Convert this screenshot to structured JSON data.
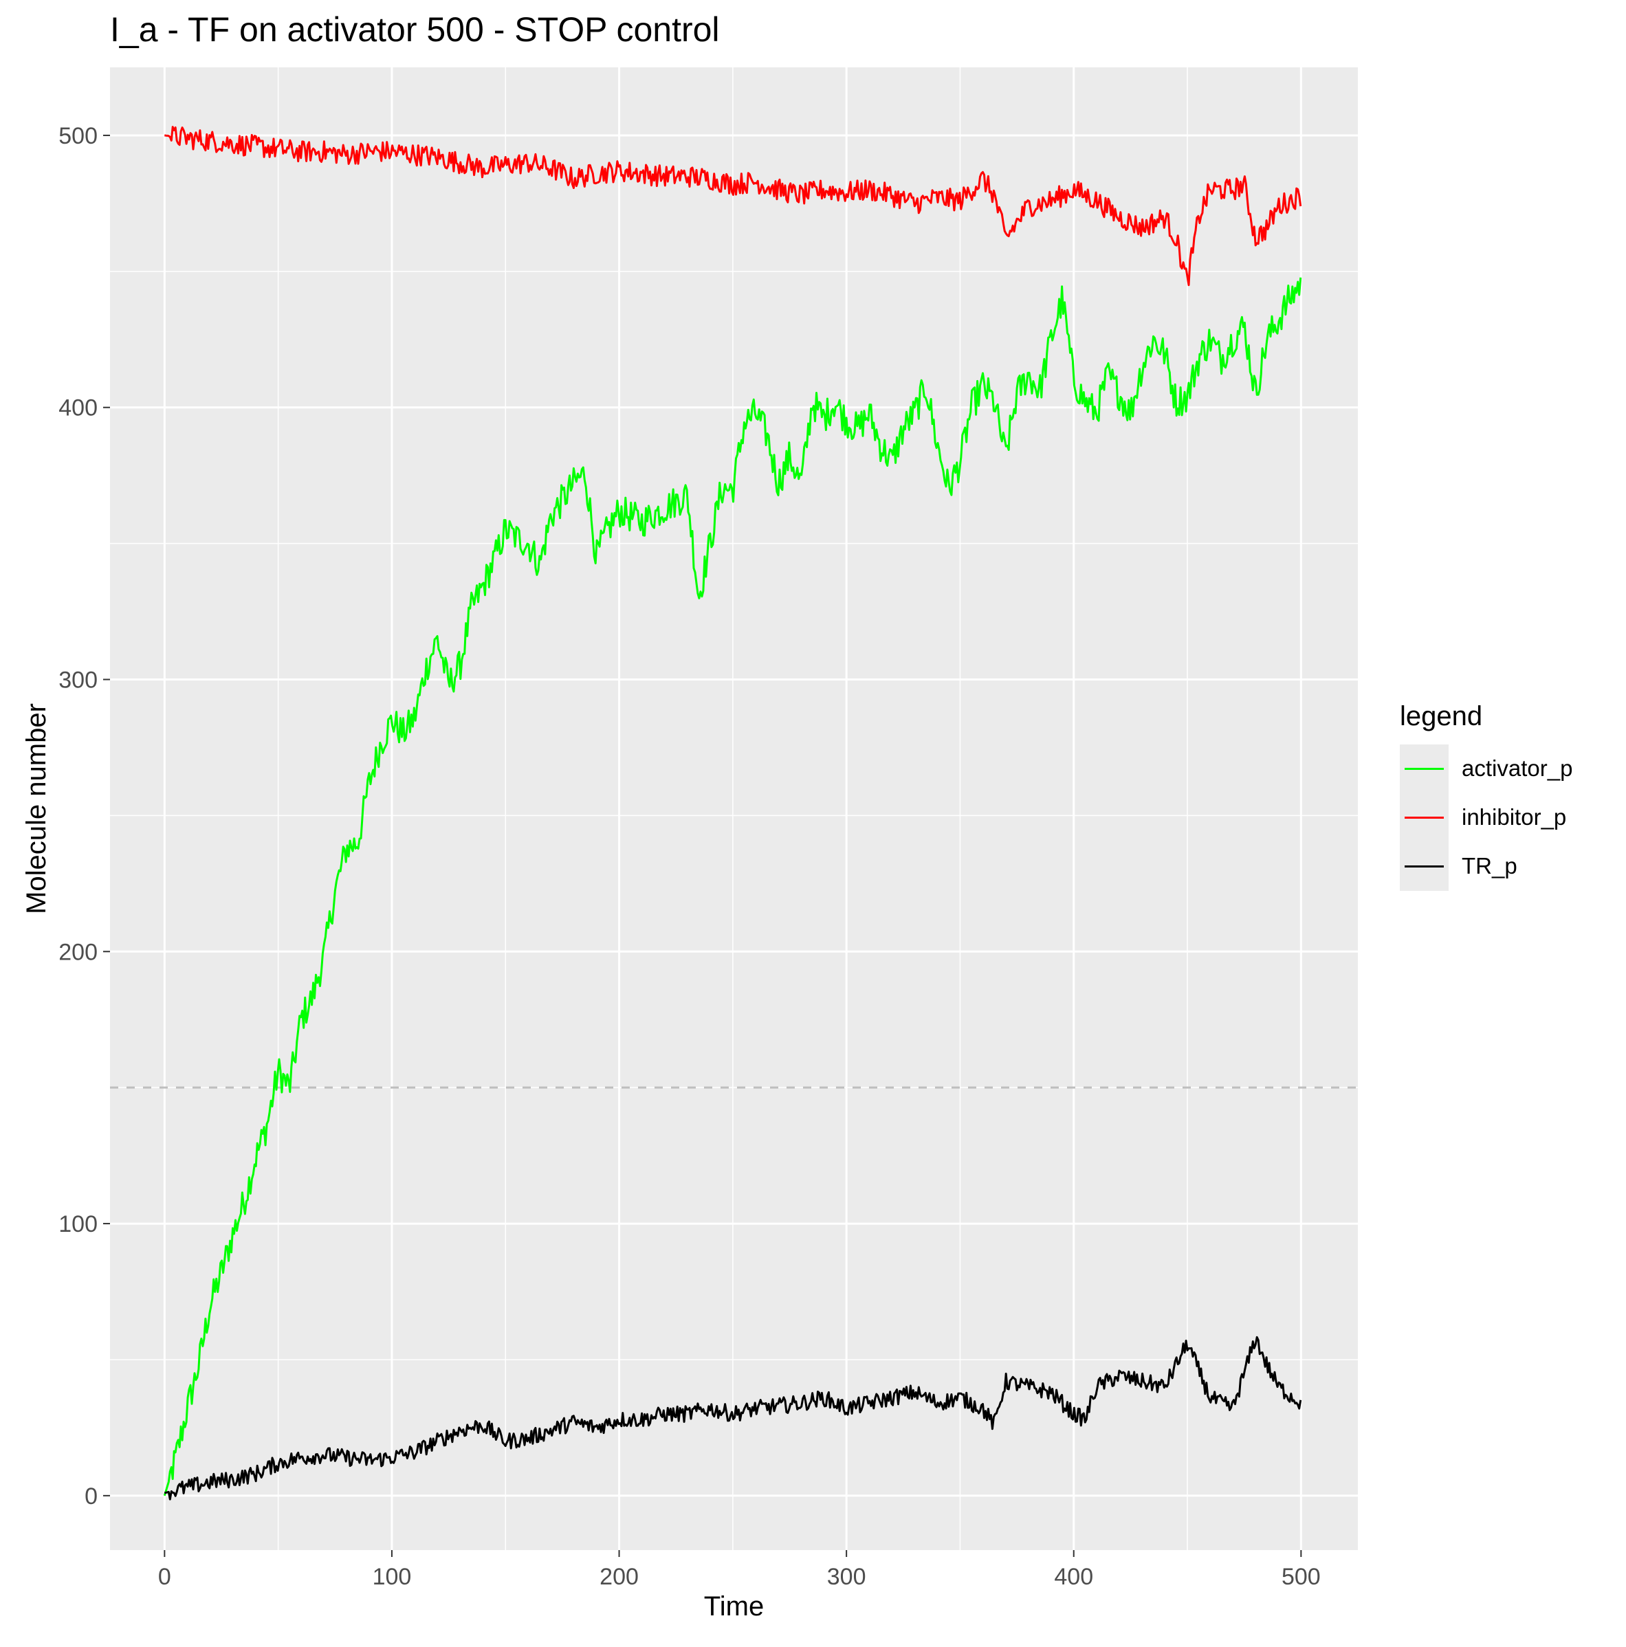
{
  "chart_data": {
    "type": "line",
    "title": "I_a - TF on activator 500 - STOP control",
    "xlabel": "Time",
    "ylabel": "Molecule number",
    "xlim": [
      -24,
      525
    ],
    "ylim": [
      -20,
      525
    ],
    "x_ticks": [
      0,
      100,
      200,
      300,
      400,
      500
    ],
    "y_ticks": [
      0,
      100,
      200,
      300,
      400,
      500
    ],
    "grid": true,
    "reference_line": {
      "y": 150,
      "style": "dashed",
      "color": "#bebebe"
    },
    "legend": {
      "title": "legend",
      "position": "right"
    },
    "series": [
      {
        "name": "activator_p",
        "color": "#00ff00",
        "points": [
          [
            0,
            0
          ],
          [
            5,
            14
          ],
          [
            10,
            32
          ],
          [
            15,
            48
          ],
          [
            20,
            70
          ],
          [
            25,
            82
          ],
          [
            30,
            96
          ],
          [
            35,
            108
          ],
          [
            40,
            124
          ],
          [
            45,
            136
          ],
          [
            50,
            156
          ],
          [
            55,
            150
          ],
          [
            60,
            175
          ],
          [
            65,
            183
          ],
          [
            70,
            198
          ],
          [
            75,
            222
          ],
          [
            80,
            238
          ],
          [
            85,
            240
          ],
          [
            90,
            262
          ],
          [
            95,
            276
          ],
          [
            100,
            285
          ],
          [
            105,
            280
          ],
          [
            110,
            286
          ],
          [
            115,
            304
          ],
          [
            120,
            315
          ],
          [
            125,
            298
          ],
          [
            130,
            305
          ],
          [
            135,
            326
          ],
          [
            140,
            334
          ],
          [
            145,
            344
          ],
          [
            150,
            355
          ],
          [
            155,
            352
          ],
          [
            160,
            350
          ],
          [
            165,
            342
          ],
          [
            170,
            360
          ],
          [
            175,
            366
          ],
          [
            180,
            372
          ],
          [
            185,
            376
          ],
          [
            190,
            345
          ],
          [
            195,
            355
          ],
          [
            200,
            362
          ],
          [
            210,
            358
          ],
          [
            220,
            363
          ],
          [
            230,
            368
          ],
          [
            235,
            330
          ],
          [
            240,
            350
          ],
          [
            245,
            370
          ],
          [
            250,
            370
          ],
          [
            255,
            394
          ],
          [
            260,
            398
          ],
          [
            265,
            390
          ],
          [
            270,
            372
          ],
          [
            275,
            382
          ],
          [
            280,
            372
          ],
          [
            285,
            402
          ],
          [
            290,
            396
          ],
          [
            295,
            402
          ],
          [
            300,
            395
          ],
          [
            305,
            392
          ],
          [
            310,
            398
          ],
          [
            315,
            386
          ],
          [
            320,
            380
          ],
          [
            325,
            392
          ],
          [
            330,
            398
          ],
          [
            335,
            408
          ],
          [
            340,
            386
          ],
          [
            345,
            370
          ],
          [
            350,
            380
          ],
          [
            355,
            400
          ],
          [
            360,
            408
          ],
          [
            365,
            402
          ],
          [
            370,
            382
          ],
          [
            375,
            405
          ],
          [
            380,
            412
          ],
          [
            385,
            406
          ],
          [
            390,
            425
          ],
          [
            395,
            440
          ],
          [
            400,
            410
          ],
          [
            405,
            402
          ],
          [
            410,
            398
          ],
          [
            415,
            412
          ],
          [
            420,
            405
          ],
          [
            425,
            398
          ],
          [
            430,
            415
          ],
          [
            435,
            425
          ],
          [
            440,
            420
          ],
          [
            445,
            402
          ],
          [
            450,
            404
          ],
          [
            455,
            418
          ],
          [
            460,
            425
          ],
          [
            465,
            418
          ],
          [
            470,
            425
          ],
          [
            475,
            430
          ],
          [
            480,
            405
          ],
          [
            485,
            425
          ],
          [
            490,
            432
          ],
          [
            495,
            440
          ],
          [
            500,
            446
          ]
        ]
      },
      {
        "name": "inhibitor_p",
        "color": "#ff0000",
        "points": [
          [
            0,
            500
          ],
          [
            10,
            499
          ],
          [
            20,
            498
          ],
          [
            30,
            497
          ],
          [
            40,
            496
          ],
          [
            50,
            495
          ],
          [
            60,
            494
          ],
          [
            70,
            494
          ],
          [
            80,
            493
          ],
          [
            90,
            494
          ],
          [
            100,
            494
          ],
          [
            110,
            493
          ],
          [
            120,
            492
          ],
          [
            130,
            490
          ],
          [
            140,
            488
          ],
          [
            150,
            489
          ],
          [
            160,
            490
          ],
          [
            170,
            488
          ],
          [
            180,
            484
          ],
          [
            190,
            486
          ],
          [
            200,
            487
          ],
          [
            210,
            486
          ],
          [
            220,
            485
          ],
          [
            230,
            485
          ],
          [
            240,
            484
          ],
          [
            250,
            482
          ],
          [
            260,
            483
          ],
          [
            270,
            480
          ],
          [
            280,
            478
          ],
          [
            290,
            480
          ],
          [
            300,
            479
          ],
          [
            310,
            480
          ],
          [
            320,
            478
          ],
          [
            330,
            475
          ],
          [
            340,
            477
          ],
          [
            350,
            476
          ],
          [
            360,
            484
          ],
          [
            365,
            478
          ],
          [
            370,
            462
          ],
          [
            380,
            474
          ],
          [
            390,
            476
          ],
          [
            400,
            480
          ],
          [
            410,
            476
          ],
          [
            420,
            470
          ],
          [
            430,
            466
          ],
          [
            440,
            470
          ],
          [
            445,
            462
          ],
          [
            450,
            446
          ],
          [
            455,
            470
          ],
          [
            460,
            480
          ],
          [
            470,
            480
          ],
          [
            475,
            482
          ],
          [
            480,
            462
          ],
          [
            485,
            466
          ],
          [
            490,
            474
          ],
          [
            495,
            476
          ],
          [
            500,
            478
          ]
        ]
      },
      {
        "name": "TR_p",
        "color": "#000000",
        "points": [
          [
            0,
            1
          ],
          [
            10,
            3
          ],
          [
            20,
            5
          ],
          [
            30,
            6
          ],
          [
            40,
            8
          ],
          [
            50,
            12
          ],
          [
            60,
            14
          ],
          [
            70,
            15
          ],
          [
            80,
            14
          ],
          [
            90,
            13
          ],
          [
            100,
            14
          ],
          [
            110,
            16
          ],
          [
            120,
            20
          ],
          [
            130,
            24
          ],
          [
            140,
            26
          ],
          [
            150,
            20
          ],
          [
            160,
            21
          ],
          [
            170,
            24
          ],
          [
            180,
            27
          ],
          [
            190,
            25
          ],
          [
            200,
            28
          ],
          [
            210,
            28
          ],
          [
            220,
            30
          ],
          [
            230,
            30
          ],
          [
            240,
            32
          ],
          [
            250,
            30
          ],
          [
            260,
            32
          ],
          [
            270,
            33
          ],
          [
            280,
            34
          ],
          [
            290,
            36
          ],
          [
            300,
            32
          ],
          [
            310,
            34
          ],
          [
            320,
            36
          ],
          [
            330,
            38
          ],
          [
            340,
            34
          ],
          [
            350,
            36
          ],
          [
            360,
            32
          ],
          [
            365,
            26
          ],
          [
            370,
            42
          ],
          [
            380,
            40
          ],
          [
            390,
            38
          ],
          [
            400,
            30
          ],
          [
            405,
            28
          ],
          [
            410,
            40
          ],
          [
            420,
            44
          ],
          [
            430,
            42
          ],
          [
            440,
            40
          ],
          [
            445,
            48
          ],
          [
            450,
            56
          ],
          [
            455,
            46
          ],
          [
            460,
            36
          ],
          [
            470,
            32
          ],
          [
            480,
            58
          ],
          [
            485,
            48
          ],
          [
            490,
            40
          ],
          [
            500,
            34
          ]
        ]
      }
    ]
  }
}
